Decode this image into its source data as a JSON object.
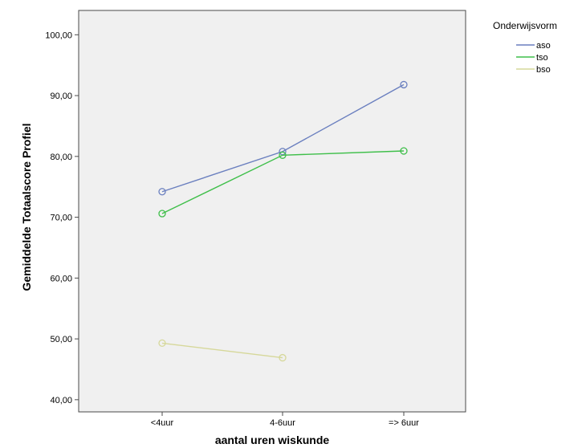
{
  "chart_data": {
    "type": "line",
    "xlabel": "aantal uren wiskunde",
    "ylabel": "Gemiddelde Totaalscore Profiel",
    "categories": [
      "<4uur",
      "4-6uur",
      "=> 6uur"
    ],
    "yticks": [
      "40,00",
      "50,00",
      "60,00",
      "70,00",
      "80,00",
      "90,00",
      "100,00"
    ],
    "ylim": [
      38,
      104
    ],
    "legend": {
      "title": "Onderwijsvorm",
      "position": "top-right"
    },
    "grid": false,
    "series": [
      {
        "name": "aso",
        "color": "#6a7fbf",
        "values": [
          74.2,
          80.8,
          91.8
        ]
      },
      {
        "name": "tso",
        "color": "#3fbf4a",
        "values": [
          70.6,
          80.2,
          80.9
        ]
      },
      {
        "name": "bso",
        "color": "#d6d89a",
        "values": [
          49.3,
          46.9,
          null
        ]
      }
    ]
  }
}
